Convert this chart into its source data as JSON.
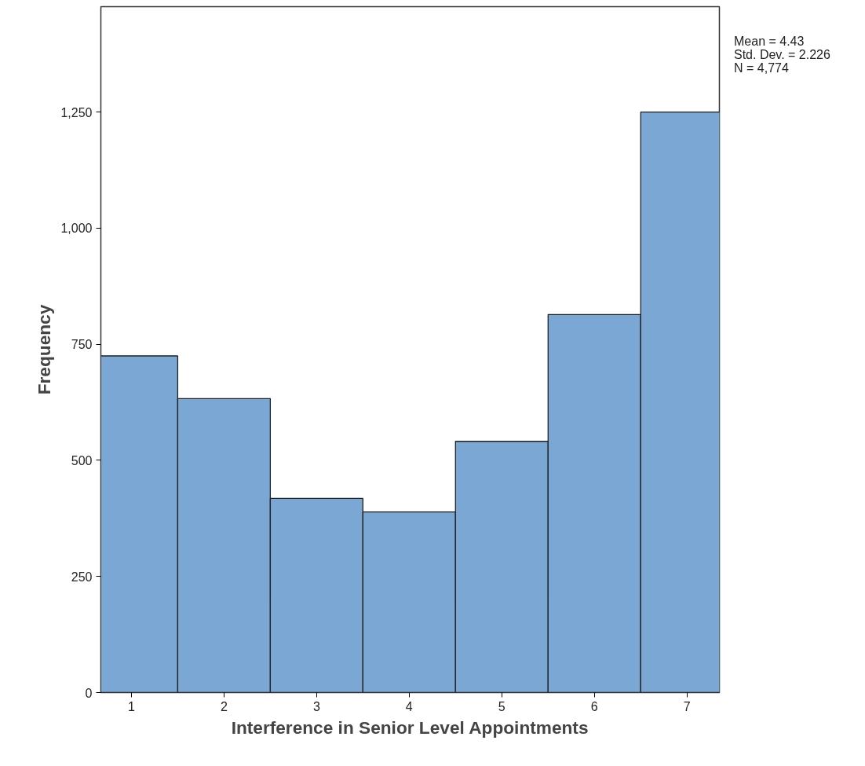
{
  "chart_data": {
    "type": "histogram",
    "xlabel": "Interference in Senior Level Appointments",
    "ylabel": "Frequency",
    "bins": [
      0.5,
      1.5,
      2.5,
      3.5,
      4.5,
      5.5,
      6.5,
      7.5
    ],
    "values": [
      725,
      633,
      418,
      389,
      541,
      814,
      1250
    ],
    "color": "#7ba7d4",
    "xlim": [
      0.67,
      7.35
    ],
    "ylim": [
      0,
      1477
    ],
    "xticks": [
      1,
      2,
      3,
      4,
      5,
      6,
      7
    ],
    "yticks": [
      0,
      250,
      500,
      750,
      {
        "value": 1000,
        "label": "1,000"
      },
      {
        "value": 1250,
        "label": "1,250"
      }
    ],
    "grid": false,
    "annotations": [
      "Mean = 4.43",
      "Std. Dev. = 2.226",
      "N = 4,774"
    ]
  }
}
